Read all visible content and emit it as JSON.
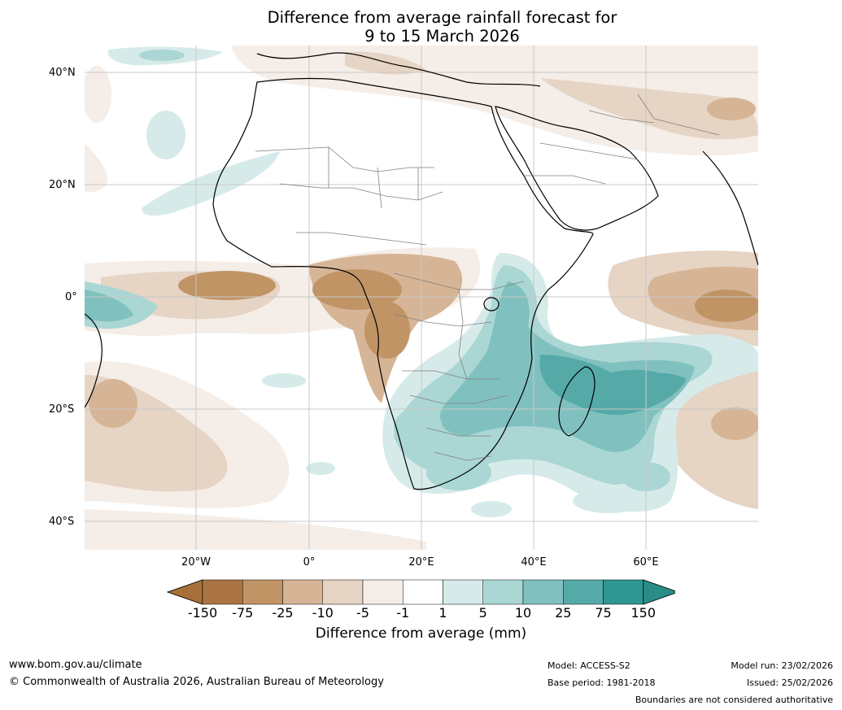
{
  "title": {
    "line1": "Difference from average rainfall forecast for",
    "line2": "9 to 15 March 2026"
  },
  "axes": {
    "lat_labels": [
      "40°N",
      "20°N",
      "0°",
      "20°S",
      "40°S"
    ],
    "lon_labels": [
      "20°W",
      "0°",
      "20°E",
      "40°E",
      "60°E"
    ]
  },
  "legend": {
    "title": "Difference from average (mm)",
    "ticks": [
      "-150",
      "-75",
      "-25",
      "-10",
      "-5",
      "-1",
      "1",
      "5",
      "10",
      "25",
      "75",
      "150"
    ],
    "colors": [
      "#a67038",
      "#a97441",
      "#c19466",
      "#d6b596",
      "#e6d4c4",
      "#f5ede7",
      "#ffffff",
      "#d6ebe9",
      "#aad6d4",
      "#80c1bf",
      "#55aaa8",
      "#2f9693",
      "#2a8c89"
    ]
  },
  "footer": {
    "url": "www.bom.gov.au/climate",
    "copyright": "© Commonwealth of Australia 2026, Australian Bureau of Meteorology",
    "model": "Model: ACCESS-S2",
    "base_period": "Base period: 1981-2018",
    "model_run": "Model run: 23/02/2026",
    "issued": "Issued: 25/02/2026",
    "disclaimer": "Boundaries are not considered authoritative"
  }
}
